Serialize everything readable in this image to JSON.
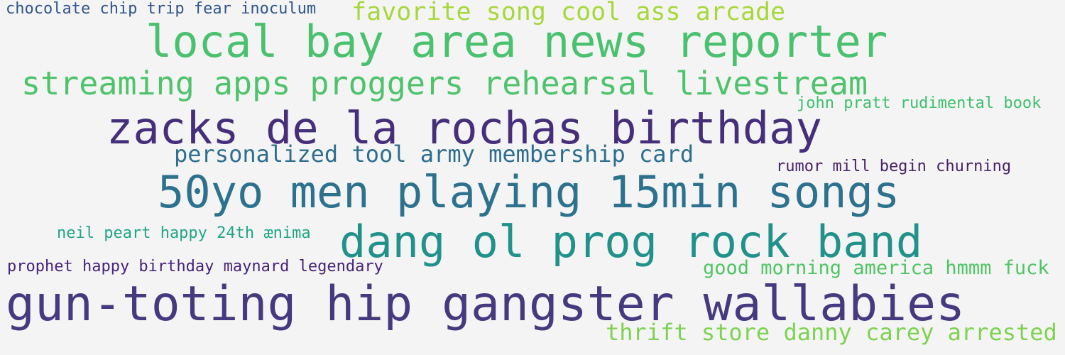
{
  "cloud": {
    "background": "#f4f4f4",
    "phrases": [
      {
        "text": "chocolate chip trip fear inoculum",
        "color": "#31568b"
      },
      {
        "text": "favorite song cool ass arcade",
        "color": "#a6d83c"
      },
      {
        "text": "local bay area news reporter",
        "color": "#4ac16e"
      },
      {
        "text": "streaming apps proggers rehearsal livestream",
        "color": "#4fc36b"
      },
      {
        "text": "john pratt rudimental book",
        "color": "#3ebf6e"
      },
      {
        "text": "zacks de la rochas birthday",
        "color": "#452e7a"
      },
      {
        "text": "personalized tool army membership card",
        "color": "#2d6e8e"
      },
      {
        "text": "rumor mill begin churning",
        "color": "#472169"
      },
      {
        "text": "50yo men playing 15min songs",
        "color": "#2c728e"
      },
      {
        "text": "neil peart happy 24th ænima",
        "color": "#21a585"
      },
      {
        "text": "dang ol prog rock band",
        "color": "#21918c"
      },
      {
        "text": "prophet happy birthday maynard legendary",
        "color": "#46237a"
      },
      {
        "text": "good morning america hmmm fuck",
        "color": "#50c465"
      },
      {
        "text": "gun-toting hip gangster wallabies",
        "color": "#46397f"
      },
      {
        "text": "thrift store danny carey arrested",
        "color": "#7dd250"
      }
    ]
  }
}
